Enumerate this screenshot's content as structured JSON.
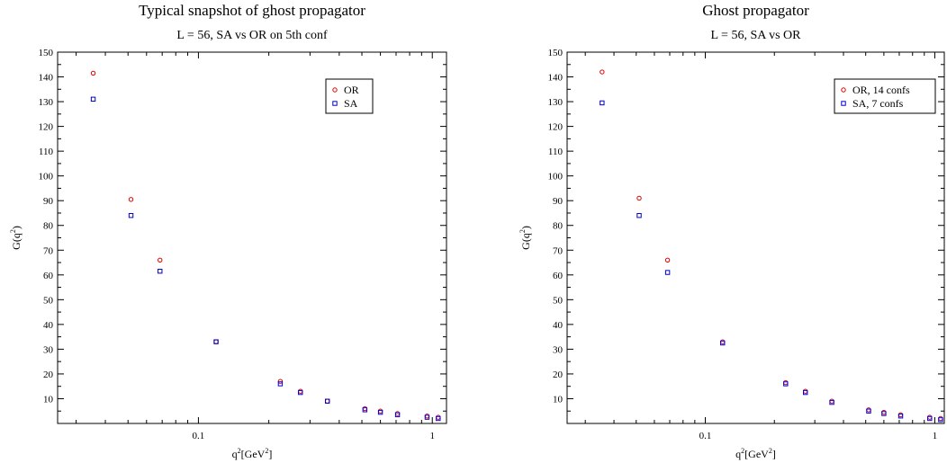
{
  "chart_data": [
    {
      "type": "scatter",
      "title": "Typical snapshot of ghost propagator",
      "subtitle": "L = 56,    SA  vs  OR  on  5th conf",
      "xlabel_base": "q",
      "xlabel_sup": "2",
      "xlabel_unit": "[GeV",
      "xlabel_unit_sup": "2",
      "xlabel_close": "]",
      "ylabel_base": "G(q",
      "ylabel_sup": "2",
      "ylabel_close": ")",
      "xscale": "log",
      "xlim": [
        0.025,
        1.15
      ],
      "ylim": [
        0,
        150
      ],
      "xticks": [
        {
          "value": 0.1,
          "label": "0.1"
        },
        {
          "value": 1,
          "label": "1"
        }
      ],
      "yticks": [
        "10",
        "20",
        "30",
        "40",
        "50",
        "60",
        "70",
        "80",
        "90",
        "100",
        "110",
        "120",
        "130",
        "140",
        "150"
      ],
      "legend_position": "top-right",
      "series": [
        {
          "name": "OR",
          "marker": "circle",
          "color": "#e00000",
          "x": [
            0.0355,
            0.0515,
            0.0685,
            0.119,
            0.224,
            0.273,
            0.356,
            0.515,
            0.6,
            0.71,
            0.95,
            1.06
          ],
          "y": [
            141.5,
            90.5,
            66.0,
            33.0,
            17.0,
            13.0,
            9.0,
            6.0,
            5.0,
            4.0,
            3.0,
            2.5
          ]
        },
        {
          "name": "SA",
          "marker": "square",
          "color": "#0000d0",
          "x": [
            0.0355,
            0.0515,
            0.0685,
            0.119,
            0.224,
            0.273,
            0.356,
            0.515,
            0.6,
            0.71,
            0.95,
            1.06
          ],
          "y": [
            131.0,
            84.0,
            61.5,
            33.0,
            16.0,
            12.5,
            9.0,
            5.5,
            4.5,
            3.5,
            2.5,
            2.0
          ]
        }
      ]
    },
    {
      "type": "scatter",
      "title": "Ghost propagator",
      "subtitle": "L = 56,        SA  vs  OR",
      "xlabel_base": "q",
      "xlabel_sup": "2",
      "xlabel_unit": "[GeV",
      "xlabel_unit_sup": "2",
      "xlabel_close": "]",
      "ylabel_base": "G(q",
      "ylabel_sup": "2",
      "ylabel_close": ")",
      "xscale": "log",
      "xlim": [
        0.025,
        1.1
      ],
      "ylim": [
        0,
        150
      ],
      "xticks": [
        {
          "value": 0.1,
          "label": "0.1"
        },
        {
          "value": 1,
          "label": "1"
        }
      ],
      "yticks": [
        "10",
        "20",
        "30",
        "40",
        "50",
        "60",
        "70",
        "80",
        "90",
        "100",
        "110",
        "120",
        "130",
        "140",
        "150"
      ],
      "legend_position": "top-right",
      "series": [
        {
          "name": "OR,  14 confs",
          "marker": "circle",
          "color": "#e00000",
          "x": [
            0.0355,
            0.0515,
            0.0685,
            0.119,
            0.224,
            0.273,
            0.356,
            0.515,
            0.6,
            0.71,
            0.95,
            1.06
          ],
          "y": [
            142.0,
            91.0,
            66.0,
            33.0,
            16.5,
            13.0,
            9.0,
            5.5,
            4.5,
            3.5,
            2.5,
            2.0
          ]
        },
        {
          "name": "SA,    7 confs",
          "marker": "square",
          "color": "#0000d0",
          "x": [
            0.0355,
            0.0515,
            0.0685,
            0.119,
            0.224,
            0.273,
            0.356,
            0.515,
            0.6,
            0.71,
            0.95,
            1.06
          ],
          "y": [
            129.5,
            84.0,
            61.0,
            32.5,
            16.0,
            12.5,
            8.5,
            5.0,
            4.0,
            3.0,
            2.0,
            1.5
          ]
        }
      ]
    }
  ]
}
